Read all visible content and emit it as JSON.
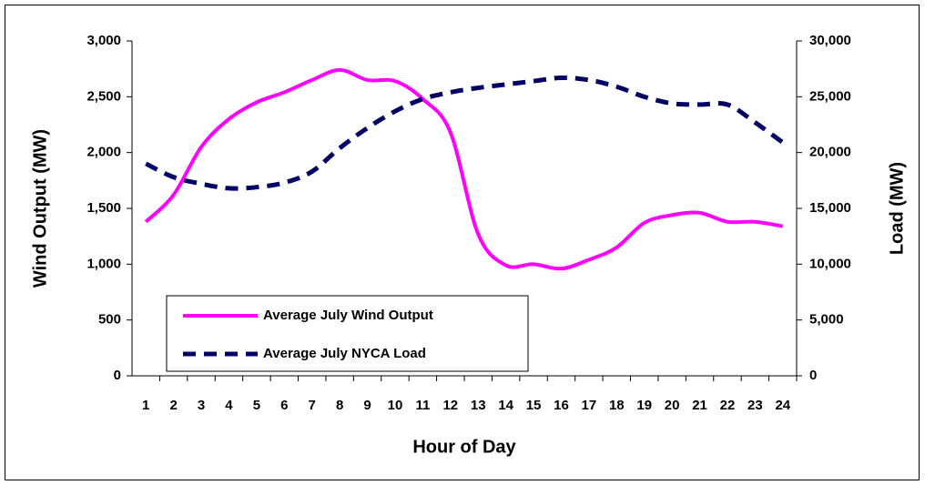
{
  "chart_data": {
    "type": "line",
    "categories": [
      "1",
      "2",
      "3",
      "4",
      "5",
      "6",
      "7",
      "8",
      "9",
      "10",
      "11",
      "12",
      "13",
      "14",
      "15",
      "16",
      "17",
      "18",
      "19",
      "20",
      "21",
      "22",
      "23",
      "24"
    ],
    "series": [
      {
        "name": "Average July Wind Output",
        "color": "#ff00ff",
        "dash": "solid",
        "values": [
          1380,
          1620,
          2050,
          2300,
          2450,
          2540,
          2650,
          2740,
          2650,
          2640,
          2480,
          2180,
          1270,
          990,
          1000,
          960,
          1040,
          1150,
          1370,
          1440,
          1460,
          1380,
          1380,
          1340
        ]
      },
      {
        "name": "Average July NYCA Load",
        "color": "#000066",
        "dash": "dashed",
        "axis": "y2",
        "values": [
          19000,
          17800,
          17200,
          16800,
          16900,
          17300,
          18300,
          20400,
          22200,
          23700,
          24800,
          25400,
          25800,
          26100,
          26400,
          26700,
          26500,
          25900,
          25000,
          24400,
          24300,
          24300,
          22700,
          20900
        ]
      }
    ],
    "xlabel": "Hour of Day",
    "ylabel": "Wind Output (MW)",
    "y2label": "Load (MW)",
    "ylim": [
      0,
      3000
    ],
    "yticks": [
      0,
      500,
      {
        "value": 1000,
        "label": "1,000"
      },
      {
        "value": 1500,
        "label": "1,500"
      },
      {
        "value": 2000,
        "label": "2,000"
      },
      {
        "value": 2500,
        "label": "2,500"
      },
      {
        "value": 3000,
        "label": "3,000"
      }
    ],
    "y2lim": [
      0,
      30000
    ],
    "y2ticks": [
      0,
      {
        "value": 5000,
        "label": "5,000"
      },
      {
        "value": 10000,
        "label": "10,000"
      },
      {
        "value": 15000,
        "label": "15,000"
      },
      {
        "value": 20000,
        "label": "20,000"
      },
      {
        "value": 25000,
        "label": "25,000"
      },
      {
        "value": 30000,
        "label": "30,000"
      }
    ],
    "legend": "lower-left",
    "grid": false
  }
}
